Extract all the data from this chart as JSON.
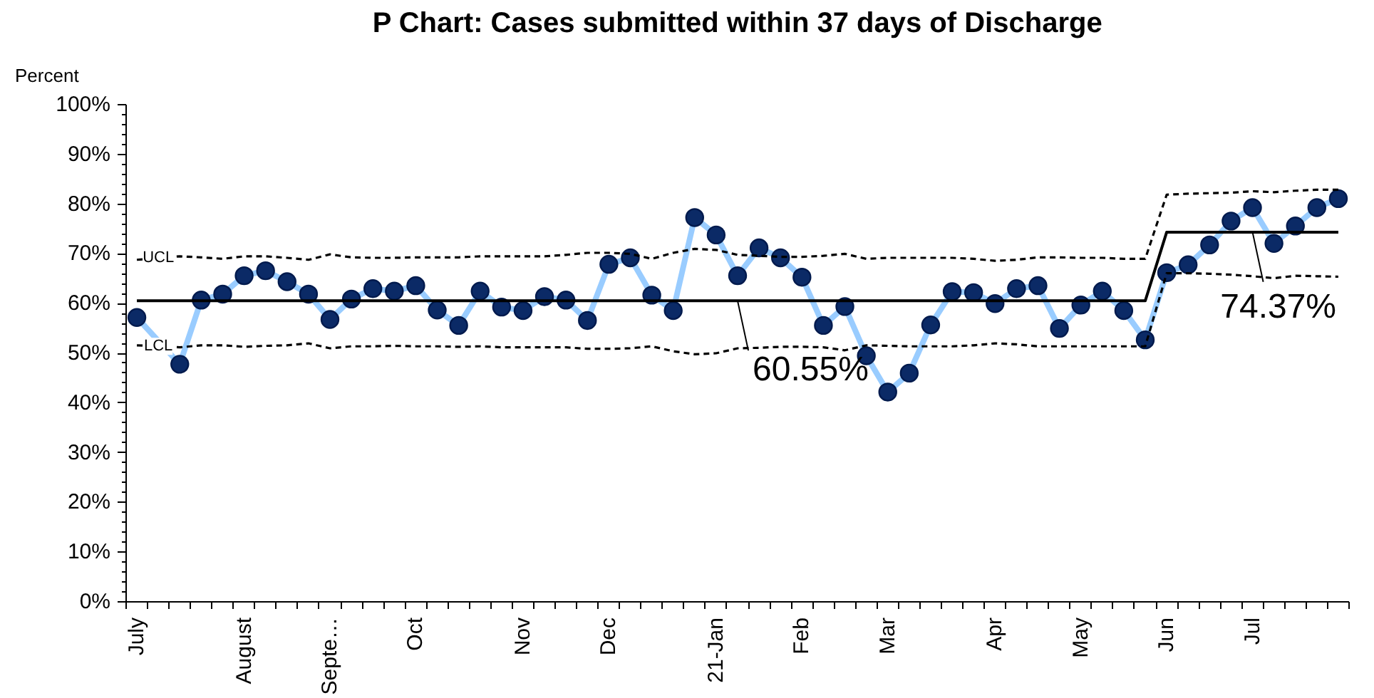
{
  "chart_data": {
    "type": "line",
    "title": "P Chart: Cases submitted within 37 days of Discharge",
    "ylabel": "Percent",
    "categories": [
      "July",
      null,
      null,
      null,
      null,
      "August",
      null,
      null,
      null,
      "Septe…",
      null,
      null,
      null,
      "Oct",
      null,
      null,
      null,
      null,
      "Nov",
      null,
      null,
      null,
      "Dec",
      null,
      null,
      null,
      null,
      "21-Jan",
      null,
      null,
      null,
      "Feb",
      null,
      null,
      null,
      "Mar",
      null,
      null,
      null,
      null,
      "Apr",
      null,
      null,
      null,
      "May",
      null,
      null,
      null,
      "Jun",
      null,
      null,
      null,
      "Jul",
      null,
      null,
      null,
      null
    ],
    "ylim": [
      0,
      100
    ],
    "yticks": [
      {
        "value": 0,
        "label": "0%"
      },
      {
        "value": 10,
        "label": "10%"
      },
      {
        "value": 20,
        "label": "20%"
      },
      {
        "value": 30,
        "label": "30%"
      },
      {
        "value": 40,
        "label": "40%"
      },
      {
        "value": 50,
        "label": "50%"
      },
      {
        "value": 60,
        "label": "60%"
      },
      {
        "value": 70,
        "label": "70%"
      },
      {
        "value": 80,
        "label": "80%"
      },
      {
        "value": 90,
        "label": "90%"
      },
      {
        "value": 100,
        "label": "100%"
      }
    ],
    "grid": false,
    "series": [
      {
        "color": "#99ccff",
        "marker": "circle",
        "line_style": "solid",
        "values": [
          57.2,
          null,
          47.8,
          60.7,
          61.9,
          65.6,
          66.6,
          64.4,
          61.9,
          56.8,
          60.9,
          63.0,
          62.5,
          63.6,
          58.7,
          55.6,
          62.5,
          59.3,
          58.6,
          61.4,
          60.7,
          56.6,
          67.9,
          69.2,
          61.7,
          58.6,
          77.3,
          73.8,
          65.6,
          71.2,
          69.2,
          65.3,
          55.6,
          59.4,
          49.5,
          42.2,
          46.0,
          55.7,
          62.4,
          62.2,
          60.0,
          63.0,
          63.6,
          55.0,
          59.7,
          62.5,
          58.6,
          52.7,
          66.2,
          67.8,
          71.8,
          76.6,
          79.3,
          72.1,
          75.6,
          79.3,
          81.1
        ]
      },
      {
        "name": "UCL",
        "color": "#000000",
        "marker": "none",
        "line_style": "dashed",
        "values": [
          68.8,
          69.2,
          69.5,
          69.3,
          69.0,
          69.5,
          69.5,
          69.2,
          68.8,
          69.9,
          69.3,
          69.2,
          69.2,
          69.3,
          69.3,
          69.3,
          69.5,
          69.5,
          69.5,
          69.5,
          69.8,
          70.2,
          70.2,
          70.0,
          69.0,
          70.2,
          71.0,
          70.8,
          69.8,
          69.6,
          69.4,
          69.4,
          69.6,
          70.0,
          69.0,
          69.2,
          69.2,
          69.2,
          69.2,
          69.0,
          68.6,
          68.8,
          69.3,
          69.3,
          69.2,
          69.2,
          69.0,
          69.0,
          81.9,
          82.1,
          82.2,
          82.3,
          82.6,
          82.4,
          82.7,
          82.9,
          82.9
        ]
      },
      {
        "name": "LCL",
        "color": "#000000",
        "marker": "none",
        "line_style": "dashed",
        "values": [
          51.6,
          51.4,
          51.2,
          51.6,
          51.6,
          51.3,
          51.5,
          51.6,
          52.0,
          51.0,
          51.4,
          51.4,
          51.5,
          51.4,
          51.4,
          51.3,
          51.4,
          51.2,
          51.2,
          51.2,
          51.2,
          50.9,
          50.9,
          51.0,
          51.4,
          50.4,
          49.8,
          50.0,
          51.0,
          51.1,
          51.3,
          51.3,
          51.2,
          50.6,
          51.6,
          51.5,
          51.4,
          51.4,
          51.4,
          51.6,
          52.0,
          51.8,
          51.4,
          51.4,
          51.4,
          51.4,
          51.4,
          51.4,
          66.1,
          66.1,
          66.0,
          65.8,
          65.5,
          65.1,
          65.6,
          65.5,
          65.4
        ]
      },
      {
        "color": "#000000",
        "marker": "none",
        "line_style": "solid",
        "values": [
          60.55,
          60.55,
          60.55,
          60.55,
          60.55,
          60.55,
          60.55,
          60.55,
          60.55,
          60.55,
          60.55,
          60.55,
          60.55,
          60.55,
          60.55,
          60.55,
          60.55,
          60.55,
          60.55,
          60.55,
          60.55,
          60.55,
          60.55,
          60.55,
          60.55,
          60.55,
          60.55,
          60.55,
          60.55,
          60.55,
          60.55,
          60.55,
          60.55,
          60.55,
          60.55,
          60.55,
          60.55,
          60.55,
          60.55,
          60.55,
          60.55,
          60.55,
          60.55,
          60.55,
          60.55,
          60.55,
          60.55,
          60.55,
          74.37,
          74.37,
          74.37,
          74.37,
          74.37,
          74.37,
          74.37,
          74.37,
          74.37
        ],
        "value_labels": [
          null,
          null,
          null,
          null,
          null,
          null,
          null,
          null,
          null,
          null,
          null,
          null,
          null,
          null,
          null,
          null,
          null,
          null,
          null,
          null,
          null,
          null,
          null,
          null,
          null,
          null,
          null,
          null,
          "60.55%",
          null,
          null,
          null,
          null,
          null,
          null,
          null,
          null,
          null,
          null,
          null,
          null,
          null,
          null,
          null,
          null,
          null,
          null,
          null,
          null,
          null,
          null,
          null,
          "74.37%",
          null,
          null,
          null,
          null
        ]
      }
    ]
  }
}
